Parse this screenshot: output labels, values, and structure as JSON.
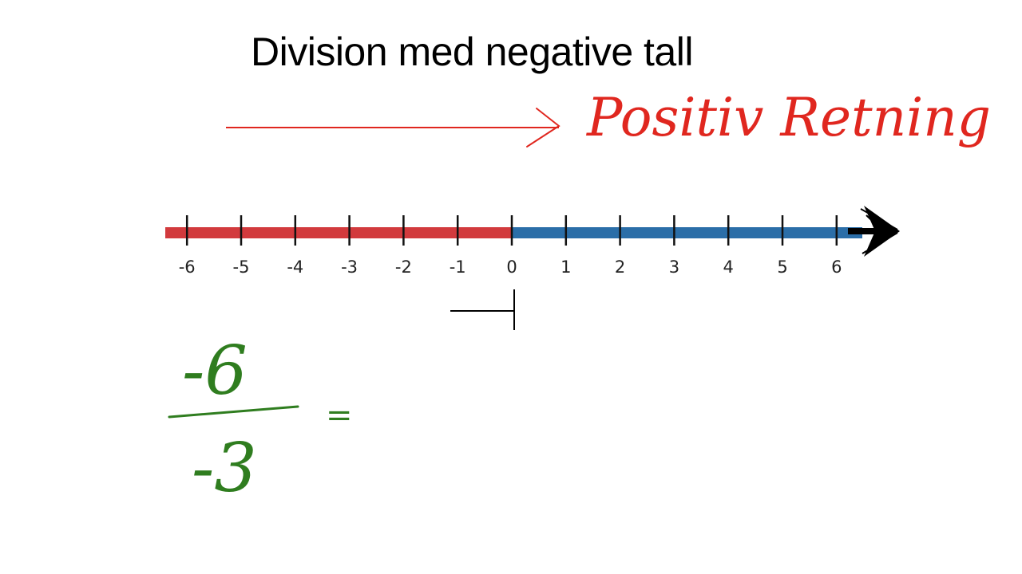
{
  "title": "Division med negative tall",
  "direction_annotation": {
    "text": "Positiv Retning",
    "color": "#e0271f"
  },
  "number_line": {
    "ticks": [
      -6,
      -5,
      -4,
      -3,
      -2,
      -1,
      0,
      1,
      2,
      3,
      4,
      5,
      6
    ],
    "negative_color": "#d23a3d",
    "positive_color": "#2b6ea8"
  },
  "equation": {
    "numerator": "-6",
    "denominator": "-3",
    "operator": "=",
    "color": "#2f7d1f"
  }
}
